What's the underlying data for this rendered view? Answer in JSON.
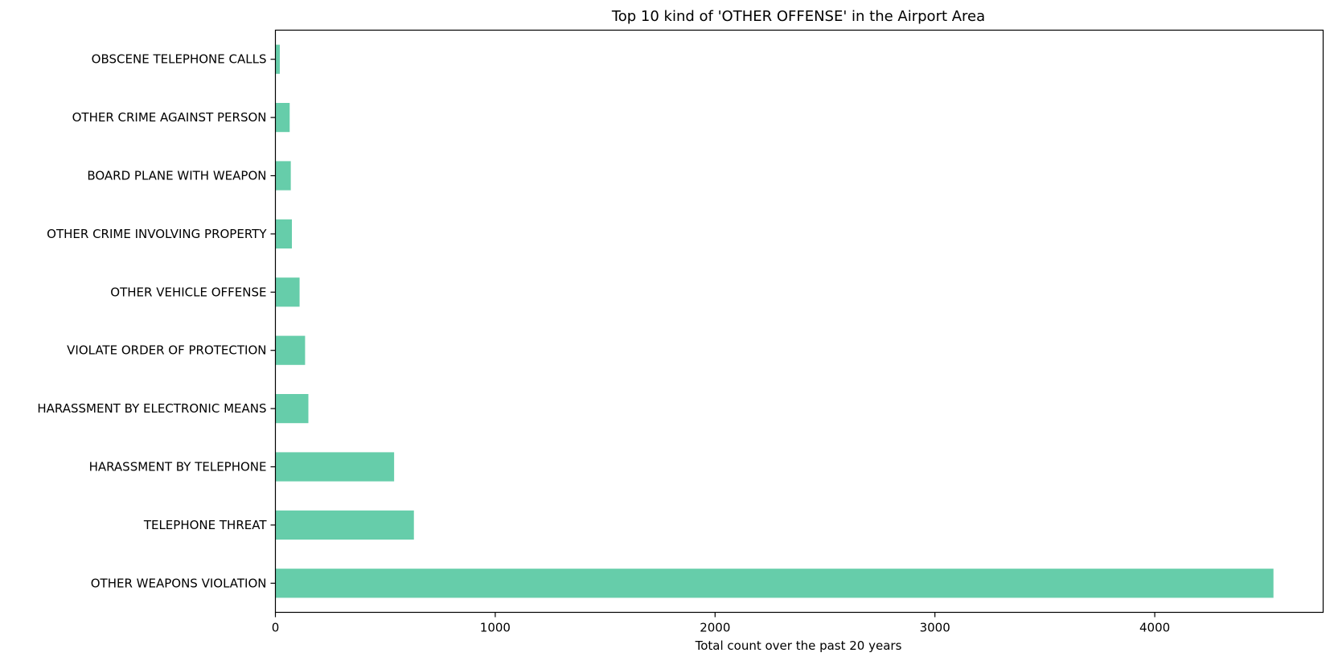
{
  "chart_data": {
    "type": "bar",
    "orientation": "horizontal",
    "title": "Top 10 kind of 'OTHER OFFENSE' in the Airport Area",
    "xlabel": "Total count over the past 20 years",
    "ylabel": "",
    "categories": [
      "OBSCENE TELEPHONE CALLS",
      "OTHER CRIME AGAINST PERSON",
      "BOARD PLANE WITH WEAPON",
      "OTHER CRIME INVOLVING PROPERTY",
      "OTHER VEHICLE OFFENSE",
      "VIOLATE ORDER OF PROTECTION",
      "HARASSMENT BY ELECTRONIC MEANS",
      "HARASSMENT BY TELEPHONE",
      "TELEPHONE THREAT",
      "OTHER WEAPONS VIOLATION"
    ],
    "values": [
      20,
      65,
      70,
      75,
      110,
      135,
      150,
      540,
      630,
      4540
    ],
    "xlim": [
      0,
      4766
    ],
    "xticks": [
      0,
      1000,
      2000,
      3000,
      4000
    ],
    "bar_color": "#66cdaa",
    "grid": false,
    "legend": "none"
  }
}
